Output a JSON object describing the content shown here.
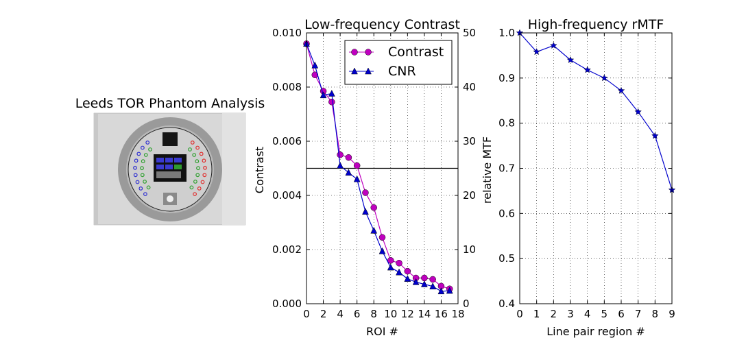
{
  "colors": {
    "contrast": "#bf00bf",
    "cnr": "#0000cc",
    "rmtf": "#0000cc",
    "roi_low_contrast_left": "#3030d0",
    "roi_low_contrast_right": "#e03030",
    "roi_high_contrast": "#30a030"
  },
  "image_panel": {
    "title": "Leeds TOR Phantom Analysis"
  },
  "chart_data": [
    {
      "type": "line",
      "title": "Low-frequency Contrast",
      "xlabel": "ROI #",
      "ylabel": "Contrast",
      "xlim": [
        0,
        18
      ],
      "ylim": [
        0,
        0.01
      ],
      "y2lim": [
        0,
        50
      ],
      "grid": true,
      "legend_position": "top-right",
      "x_ticks": [
        "0",
        "2",
        "4",
        "6",
        "8",
        "10",
        "12",
        "14",
        "16",
        "18"
      ],
      "y_ticks": [
        "0.000",
        "0.002",
        "0.004",
        "0.006",
        "0.008",
        "0.010"
      ],
      "y2_ticks": [
        "0",
        "10",
        "20",
        "30",
        "40",
        "50"
      ],
      "threshold_line": {
        "axis": "y2",
        "value": 25
      },
      "series": [
        {
          "name": "Contrast",
          "axis": "y",
          "marker": "circle",
          "x": [
            0,
            1,
            2,
            3,
            4,
            5,
            6,
            7,
            8,
            9,
            10,
            11,
            12,
            13,
            14,
            15,
            16,
            17
          ],
          "values": [
            0.0096,
            0.00845,
            0.00785,
            0.00745,
            0.0055,
            0.0054,
            0.0051,
            0.0041,
            0.00355,
            0.00245,
            0.0016,
            0.0015,
            0.0012,
            0.00095,
            0.00095,
            0.0009,
            0.00065,
            0.00055
          ]
        },
        {
          "name": "CNR",
          "axis": "y2",
          "marker": "triangle",
          "x": [
            0,
            1,
            2,
            3,
            4,
            5,
            6,
            7,
            8,
            9,
            10,
            11,
            12,
            13,
            14,
            15,
            16,
            17
          ],
          "values": [
            48.0,
            44.0,
            38.5,
            38.8,
            25.5,
            24.2,
            23.0,
            17.0,
            13.5,
            9.7,
            6.7,
            5.8,
            4.6,
            4.0,
            3.6,
            3.2,
            2.3,
            2.4
          ]
        }
      ]
    },
    {
      "type": "line",
      "title": "High-frequency rMTF",
      "xlabel": "Line pair region #",
      "ylabel": "relative MTF",
      "xlim": [
        0,
        9
      ],
      "ylim": [
        0.4,
        1.0
      ],
      "grid": true,
      "x_ticks": [
        "0",
        "1",
        "2",
        "3",
        "4",
        "5",
        "6",
        "7",
        "8",
        "9"
      ],
      "y_ticks": [
        "0.4",
        "0.5",
        "0.6",
        "0.7",
        "0.8",
        "0.9",
        "1.0"
      ],
      "series": [
        {
          "marker": "star",
          "x": [
            0,
            1,
            2,
            3,
            4,
            5,
            6,
            7,
            8,
            9
          ],
          "values": [
            1.0,
            0.958,
            0.972,
            0.94,
            0.918,
            0.9,
            0.872,
            0.825,
            0.772,
            0.652
          ]
        }
      ]
    }
  ]
}
